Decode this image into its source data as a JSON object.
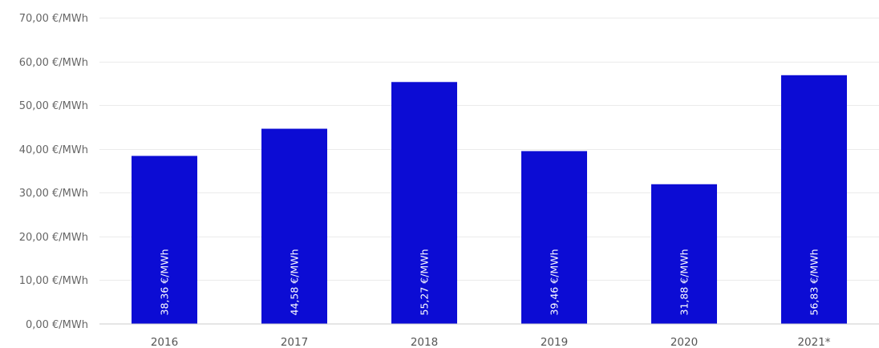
{
  "chart_data": {
    "type": "bar",
    "title": "",
    "xlabel": "",
    "ylabel": "",
    "categories": [
      "2016",
      "2017",
      "2018",
      "2019",
      "2020",
      "2021*"
    ],
    "values": [
      38.36,
      44.58,
      55.27,
      39.46,
      31.88,
      56.83
    ],
    "data_labels": [
      "38,36 €/MWh",
      "44,58 €/MWh",
      "55,27 €/MWh",
      "39,46 €/MWh",
      "31,88 €/MWh",
      "56,83 €/MWh"
    ],
    "ylim": [
      0,
      70
    ],
    "yticks": [
      0,
      10,
      20,
      30,
      40,
      50,
      60,
      70
    ],
    "ytick_labels": [
      "0,00 €/MWh",
      "10,00 €/MWh",
      "20,00 €/MWh",
      "30,00 €/MWh",
      "40,00 €/MWh",
      "50,00 €/MWh",
      "60,00 €/MWh",
      "70,00 €/MWh"
    ],
    "grid": true,
    "bar_color": "#0c0cd4",
    "grid_color": "#ebebeb",
    "axis_color": "#cccccc",
    "label_color": "#ffffff"
  }
}
